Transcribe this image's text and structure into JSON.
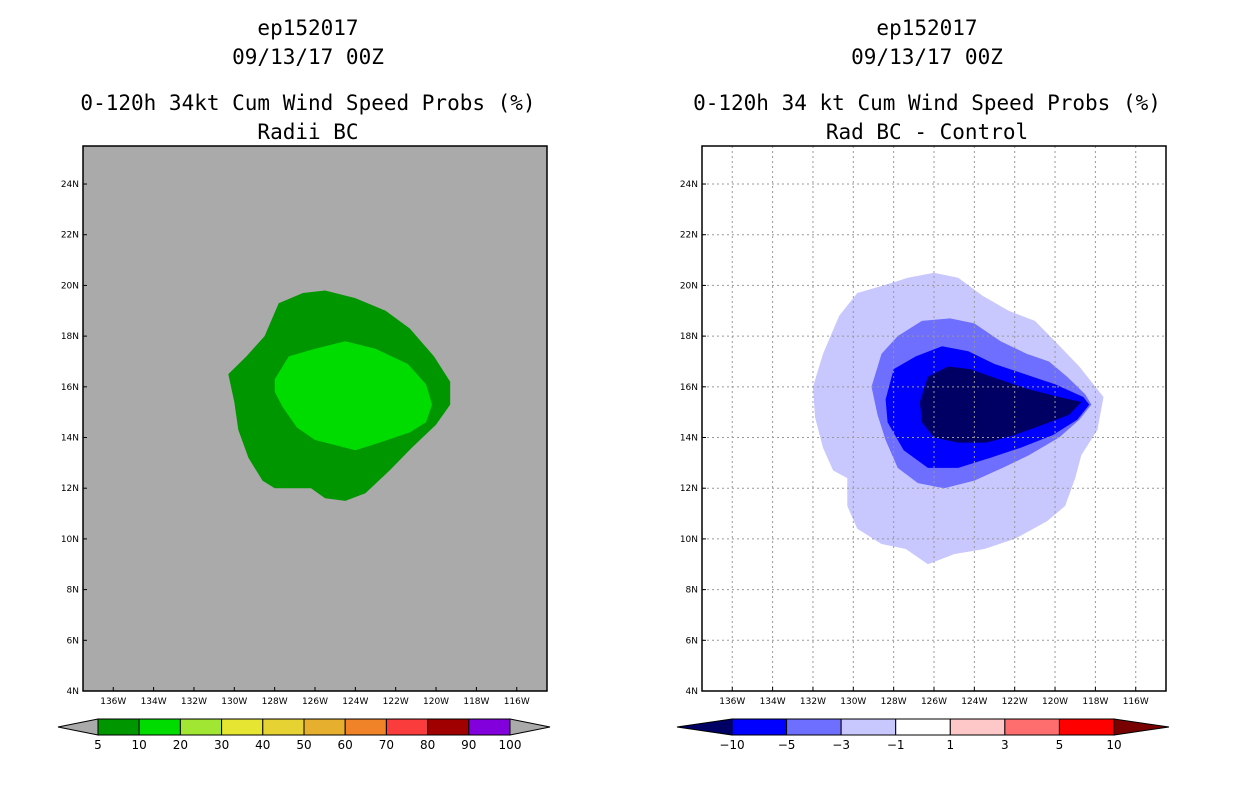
{
  "chart_data": [
    {
      "type": "heatmap",
      "title": [
        "ep152017",
        "09/13/17 00Z",
        "0-120h 34kt Cum Wind Speed Probs (%)",
        "Radii BC"
      ],
      "xlabel": "",
      "ylabel": "",
      "xlim": [
        -137.5,
        -114.5
      ],
      "ylim": [
        4,
        25.5
      ],
      "x_ticks": [
        "136W",
        "134W",
        "132W",
        "130W",
        "128W",
        "126W",
        "124W",
        "122W",
        "120W",
        "118W",
        "116W"
      ],
      "x_tick_values": [
        -136,
        -134,
        -132,
        -130,
        -128,
        -126,
        -124,
        -122,
        -120,
        -118,
        -116
      ],
      "y_ticks": [
        "4N",
        "6N",
        "8N",
        "10N",
        "12N",
        "14N",
        "16N",
        "18N",
        "20N",
        "22N",
        "24N"
      ],
      "y_tick_values": [
        4,
        6,
        8,
        10,
        12,
        14,
        16,
        18,
        20,
        22,
        24
      ],
      "grid": false,
      "background_color": "#aaaaaa",
      "contours": [
        {
          "level": "5-10",
          "color": "#009600",
          "points": [
            [
              -130.3,
              16.5
            ],
            [
              -129.4,
              17.2
            ],
            [
              -128.5,
              18.0
            ],
            [
              -127.8,
              19.3
            ],
            [
              -126.6,
              19.7
            ],
            [
              -125.5,
              19.8
            ],
            [
              -124.0,
              19.5
            ],
            [
              -122.5,
              19.0
            ],
            [
              -121.3,
              18.3
            ],
            [
              -120.1,
              17.2
            ],
            [
              -119.3,
              16.2
            ],
            [
              -119.3,
              15.3
            ],
            [
              -120.0,
              14.5
            ],
            [
              -121.2,
              13.6
            ],
            [
              -122.3,
              12.7
            ],
            [
              -123.5,
              11.8
            ],
            [
              -124.5,
              11.5
            ],
            [
              -125.5,
              11.6
            ],
            [
              -126.2,
              12.0
            ],
            [
              -127.2,
              12.0
            ],
            [
              -128.0,
              12.0
            ],
            [
              -128.6,
              12.3
            ],
            [
              -129.3,
              13.2
            ],
            [
              -129.8,
              14.3
            ],
            [
              -130.0,
              15.4
            ]
          ]
        },
        {
          "level": "10-20",
          "color": "#00dc00",
          "points": [
            [
              -128.0,
              16.3
            ],
            [
              -127.3,
              17.2
            ],
            [
              -126.0,
              17.5
            ],
            [
              -124.5,
              17.8
            ],
            [
              -123.0,
              17.5
            ],
            [
              -121.4,
              16.9
            ],
            [
              -120.5,
              16.1
            ],
            [
              -120.2,
              15.3
            ],
            [
              -120.5,
              14.6
            ],
            [
              -121.3,
              14.2
            ],
            [
              -122.8,
              13.8
            ],
            [
              -124.0,
              13.5
            ],
            [
              -125.0,
              13.7
            ],
            [
              -126.0,
              13.9
            ],
            [
              -126.9,
              14.4
            ],
            [
              -127.6,
              15.2
            ],
            [
              -128.0,
              15.8
            ]
          ]
        }
      ],
      "colorbar": {
        "labels": [
          "5",
          "10",
          "20",
          "30",
          "40",
          "50",
          "60",
          "70",
          "80",
          "90",
          "100"
        ],
        "colors": [
          "#009600",
          "#00dc00",
          "#a0e632",
          "#e6e632",
          "#e6d232",
          "#e6af2d",
          "#f08228",
          "#fa3c3c",
          "#a00000",
          "#8200dc"
        ],
        "under_color": "#aaaaaa",
        "over_color": "#aaaaaa"
      }
    },
    {
      "type": "heatmap",
      "title": [
        "ep152017",
        "09/13/17 00Z",
        "0-120h 34 kt Cum Wind Speed Probs (%)",
        "Rad BC - Control"
      ],
      "xlabel": "",
      "ylabel": "",
      "xlim": [
        -137.5,
        -114.5
      ],
      "ylim": [
        4,
        25.5
      ],
      "x_ticks": [
        "136W",
        "134W",
        "132W",
        "130W",
        "128W",
        "126W",
        "124W",
        "122W",
        "120W",
        "118W",
        "116W"
      ],
      "x_tick_values": [
        -136,
        -134,
        -132,
        -130,
        -128,
        -126,
        -124,
        -122,
        -120,
        -118,
        -116
      ],
      "y_ticks": [
        "4N",
        "6N",
        "8N",
        "10N",
        "12N",
        "14N",
        "16N",
        "18N",
        "20N",
        "22N",
        "24N"
      ],
      "y_tick_values": [
        4,
        6,
        8,
        10,
        12,
        14,
        16,
        18,
        20,
        22,
        24
      ],
      "grid": true,
      "background_color": "#ffffff",
      "contours": [
        {
          "level": "-3 to -1",
          "color": "#c8c8ff",
          "points": [
            [
              -131.5,
              17.3
            ],
            [
              -130.7,
              18.8
            ],
            [
              -129.8,
              19.7
            ],
            [
              -128.5,
              20.0
            ],
            [
              -127.3,
              20.3
            ],
            [
              -126.0,
              20.5
            ],
            [
              -124.8,
              20.3
            ],
            [
              -123.6,
              19.6
            ],
            [
              -122.3,
              19.0
            ],
            [
              -121.0,
              18.6
            ],
            [
              -120.0,
              17.8
            ],
            [
              -118.8,
              16.8
            ],
            [
              -117.6,
              15.6
            ],
            [
              -117.9,
              14.3
            ],
            [
              -118.7,
              13.3
            ],
            [
              -119.0,
              12.4
            ],
            [
              -119.5,
              11.3
            ],
            [
              -120.4,
              10.7
            ],
            [
              -122.0,
              10.0
            ],
            [
              -123.5,
              9.6
            ],
            [
              -125.0,
              9.4
            ],
            [
              -126.3,
              9.0
            ],
            [
              -127.4,
              9.6
            ],
            [
              -128.6,
              9.8
            ],
            [
              -129.8,
              10.4
            ],
            [
              -130.3,
              11.3
            ],
            [
              -130.3,
              12.4
            ],
            [
              -131.0,
              12.7
            ],
            [
              -131.5,
              13.6
            ],
            [
              -131.9,
              14.8
            ],
            [
              -132.0,
              16.0
            ]
          ]
        },
        {
          "level": "-5 to -3",
          "color": "#6e6eff",
          "points": [
            [
              -129.1,
              16.0
            ],
            [
              -128.6,
              17.3
            ],
            [
              -127.8,
              18.0
            ],
            [
              -126.6,
              18.6
            ],
            [
              -125.2,
              18.7
            ],
            [
              -124.0,
              18.5
            ],
            [
              -122.7,
              17.8
            ],
            [
              -121.4,
              17.3
            ],
            [
              -120.3,
              17.0
            ],
            [
              -119.4,
              16.4
            ],
            [
              -118.5,
              15.7
            ],
            [
              -118.2,
              15.3
            ],
            [
              -118.8,
              14.7
            ],
            [
              -119.8,
              14.0
            ],
            [
              -121.3,
              13.3
            ],
            [
              -122.6,
              12.8
            ],
            [
              -124.0,
              12.3
            ],
            [
              -125.5,
              12.0
            ],
            [
              -126.8,
              12.2
            ],
            [
              -127.8,
              12.8
            ],
            [
              -128.4,
              13.9
            ],
            [
              -128.8,
              14.9
            ]
          ]
        },
        {
          "level": "-10 to -5",
          "color": "#0000ff",
          "points": [
            [
              -128.4,
              15.5
            ],
            [
              -128.0,
              16.7
            ],
            [
              -126.9,
              17.2
            ],
            [
              -125.6,
              17.6
            ],
            [
              -124.3,
              17.4
            ],
            [
              -123.0,
              16.9
            ],
            [
              -121.5,
              16.5
            ],
            [
              -120.0,
              16.1
            ],
            [
              -118.6,
              15.6
            ],
            [
              -118.3,
              15.3
            ],
            [
              -118.9,
              14.7
            ],
            [
              -120.1,
              14.1
            ],
            [
              -121.7,
              13.6
            ],
            [
              -123.2,
              13.2
            ],
            [
              -124.8,
              12.8
            ],
            [
              -126.3,
              12.8
            ],
            [
              -127.5,
              13.5
            ],
            [
              -128.3,
              14.6
            ]
          ]
        },
        {
          "level": "< -10",
          "color": "#000064",
          "points": [
            [
              -126.7,
              15.4
            ],
            [
              -126.3,
              16.4
            ],
            [
              -125.3,
              16.8
            ],
            [
              -124.2,
              16.7
            ],
            [
              -122.8,
              16.3
            ],
            [
              -121.3,
              15.9
            ],
            [
              -119.8,
              15.6
            ],
            [
              -118.7,
              15.4
            ],
            [
              -119.3,
              14.9
            ],
            [
              -120.6,
              14.5
            ],
            [
              -122.0,
              14.1
            ],
            [
              -123.4,
              13.8
            ],
            [
              -124.8,
              13.8
            ],
            [
              -126.0,
              14.0
            ],
            [
              -126.6,
              14.6
            ]
          ]
        }
      ],
      "colorbar": {
        "labels": [
          "−10",
          "−5",
          "−3",
          "−1",
          "1",
          "3",
          "5",
          "10"
        ],
        "colors": [
          "#0000ff",
          "#6e6eff",
          "#c8c8ff",
          "#ffffff",
          "#ffc8c8",
          "#ff6e6e",
          "#ff0000"
        ],
        "under_color": "#000064",
        "over_color": "#780000"
      }
    }
  ]
}
